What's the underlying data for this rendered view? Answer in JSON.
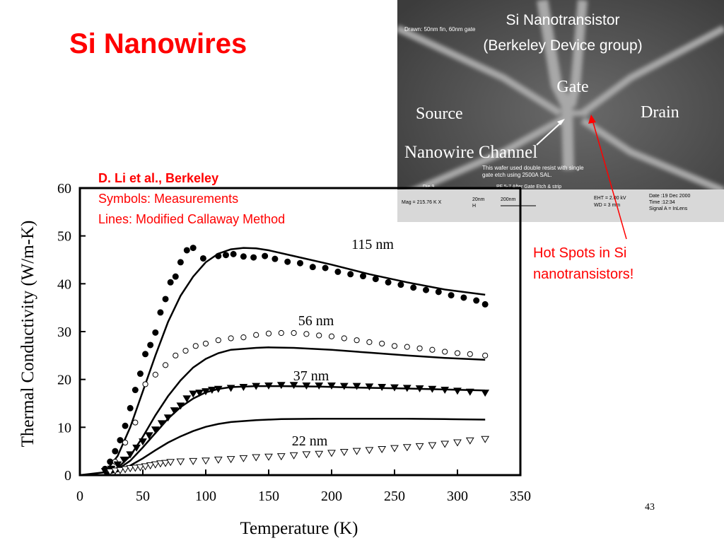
{
  "slide": {
    "title": "Si Nanowires",
    "number": "43",
    "citation": {
      "author": "D. Li et al., Berkeley",
      "line2": "Symbols: Measurements",
      "line3": "Lines: Modified Callaway Method"
    },
    "hotspot_note": [
      "Hot Spots in Si",
      "nanotransistors!"
    ]
  },
  "photo": {
    "title_line1": "Si Nanotransistor",
    "title_line2": "(Berkeley Device group)",
    "drawn_caption": "Drawn:  50nm fin, 60nm gate",
    "label_gate": "Gate",
    "label_source": "Source",
    "label_drain": "Drain",
    "label_channel": "Nanowire Channel",
    "overlay_note_1": "This wafer used double resist with single",
    "overlay_note_2": "gate etch using 2500A SAL.",
    "info_die": "Die 9.",
    "info_step": "PF 5-7 After Gate Etch & strip",
    "info_mag": "Mag = 215.76 K X",
    "info_scale1": "20nm",
    "info_scale1_sub": "H",
    "info_scale2": "200nm",
    "info_eht": "EHT =  2.00 kV",
    "info_wd": "WD =    3 mm",
    "info_date": "Date :19 Dec 2000",
    "info_time": "Time :12:34",
    "info_signal": "Signal A = InLens"
  },
  "colors": {
    "accent": "#ff0000",
    "text": "#000000",
    "sem_bg": "#4a4a4a"
  },
  "chart_data": {
    "type": "scatter",
    "xlabel": "Temperature (K)",
    "ylabel": "Thermal Conductivity (W/m-K)",
    "xlim": [
      0,
      350
    ],
    "ylim": [
      0,
      60
    ],
    "xticks": [
      0,
      50,
      100,
      150,
      200,
      250,
      300,
      350
    ],
    "yticks": [
      0,
      10,
      20,
      30,
      40,
      50,
      60
    ],
    "series": [
      {
        "name": "115 nm",
        "marker": "filled-circle",
        "measurements": [
          [
            20,
            1.3
          ],
          [
            24,
            2.8
          ],
          [
            28,
            5
          ],
          [
            32,
            7.3
          ],
          [
            36,
            10.3
          ],
          [
            40,
            14
          ],
          [
            44,
            17.8
          ],
          [
            48,
            21.2
          ],
          [
            52,
            25.3
          ],
          [
            56,
            27.2
          ],
          [
            60,
            29.8
          ],
          [
            64,
            34
          ],
          [
            68,
            36.8
          ],
          [
            72,
            40.3
          ],
          [
            76,
            41.5
          ],
          [
            80,
            44.5
          ],
          [
            85,
            47
          ],
          [
            90,
            47.5
          ],
          [
            98,
            45.3
          ],
          [
            110,
            45.8
          ],
          [
            116,
            46
          ],
          [
            122,
            46.2
          ],
          [
            130,
            45.7
          ],
          [
            138,
            45.5
          ],
          [
            147,
            45.8
          ],
          [
            155,
            45.2
          ],
          [
            165,
            44.6
          ],
          [
            175,
            44.3
          ],
          [
            185,
            43.5
          ],
          [
            195,
            43.3
          ],
          [
            205,
            42.5
          ],
          [
            215,
            42
          ],
          [
            225,
            41.6
          ],
          [
            235,
            41
          ],
          [
            245,
            40.3
          ],
          [
            255,
            39.8
          ],
          [
            265,
            39.2
          ],
          [
            275,
            38.7
          ],
          [
            285,
            38.3
          ],
          [
            295,
            37.6
          ],
          [
            305,
            37.1
          ],
          [
            315,
            36.5
          ],
          [
            322,
            35.7
          ]
        ],
        "model": [
          [
            0,
            0
          ],
          [
            20,
            0.6
          ],
          [
            30,
            4
          ],
          [
            40,
            10
          ],
          [
            50,
            17.5
          ],
          [
            60,
            25
          ],
          [
            70,
            32
          ],
          [
            80,
            37.5
          ],
          [
            90,
            41.5
          ],
          [
            100,
            44.5
          ],
          [
            110,
            46.3
          ],
          [
            120,
            47.2
          ],
          [
            130,
            47.5
          ],
          [
            140,
            47.4
          ],
          [
            150,
            47
          ],
          [
            170,
            45.8
          ],
          [
            200,
            44
          ],
          [
            230,
            42
          ],
          [
            260,
            40.3
          ],
          [
            290,
            38.8
          ],
          [
            322,
            37.7
          ]
        ]
      },
      {
        "name": "56 nm",
        "marker": "open-circle",
        "measurements": [
          [
            28,
            2.8
          ],
          [
            36,
            6.8
          ],
          [
            44,
            11
          ],
          [
            52,
            19
          ],
          [
            60,
            21
          ],
          [
            68,
            23
          ],
          [
            76,
            25
          ],
          [
            84,
            26
          ],
          [
            92,
            27
          ],
          [
            100,
            27.5
          ],
          [
            110,
            28.2
          ],
          [
            120,
            28.6
          ],
          [
            130,
            28.8
          ],
          [
            140,
            29.3
          ],
          [
            150,
            29.6
          ],
          [
            160,
            29.7
          ],
          [
            170,
            29.7
          ],
          [
            180,
            29.5
          ],
          [
            190,
            29.2
          ],
          [
            200,
            29
          ],
          [
            210,
            28.6
          ],
          [
            220,
            28.2
          ],
          [
            230,
            27.8
          ],
          [
            240,
            27.5
          ],
          [
            250,
            27
          ],
          [
            260,
            26.8
          ],
          [
            270,
            26.5
          ],
          [
            280,
            26.2
          ],
          [
            290,
            25.8
          ],
          [
            300,
            25.5
          ],
          [
            310,
            25.3
          ],
          [
            322,
            25
          ]
        ],
        "model": [
          [
            20,
            0.3
          ],
          [
            30,
            1.5
          ],
          [
            40,
            4
          ],
          [
            50,
            8
          ],
          [
            60,
            12.5
          ],
          [
            70,
            16.5
          ],
          [
            80,
            19.8
          ],
          [
            90,
            22.5
          ],
          [
            100,
            24.3
          ],
          [
            110,
            25.5
          ],
          [
            120,
            26.2
          ],
          [
            140,
            26.6
          ],
          [
            150,
            26.7
          ],
          [
            170,
            26.6
          ],
          [
            200,
            26.2
          ],
          [
            230,
            25.6
          ],
          [
            260,
            25
          ],
          [
            290,
            24.5
          ],
          [
            322,
            24.1
          ]
        ]
      },
      {
        "name": "37 nm",
        "marker": "filled-down-triangle",
        "measurements": [
          [
            20,
            0.8
          ],
          [
            25,
            1.3
          ],
          [
            30,
            2.2
          ],
          [
            35,
            3.2
          ],
          [
            40,
            4.3
          ],
          [
            45,
            5.7
          ],
          [
            50,
            7
          ],
          [
            55,
            8.3
          ],
          [
            60,
            9.5
          ],
          [
            65,
            10.8
          ],
          [
            70,
            12
          ],
          [
            75,
            13.5
          ],
          [
            80,
            14.5
          ],
          [
            85,
            16
          ],
          [
            90,
            17
          ],
          [
            95,
            17.2
          ],
          [
            100,
            17.5
          ],
          [
            105,
            17.8
          ],
          [
            110,
            18
          ],
          [
            120,
            18.2
          ],
          [
            130,
            18.4
          ],
          [
            140,
            18.6
          ],
          [
            150,
            18.7
          ],
          [
            160,
            18.8
          ],
          [
            170,
            18.8
          ],
          [
            180,
            18.7
          ],
          [
            190,
            18.7
          ],
          [
            200,
            18.7
          ],
          [
            210,
            18.6
          ],
          [
            220,
            18.6
          ],
          [
            230,
            18.5
          ],
          [
            240,
            18.4
          ],
          [
            250,
            18.3
          ],
          [
            260,
            18.2
          ],
          [
            270,
            18.1
          ],
          [
            280,
            18
          ],
          [
            290,
            17.8
          ],
          [
            300,
            17.6
          ],
          [
            310,
            17.4
          ],
          [
            322,
            17.2
          ]
        ],
        "model": [
          [
            20,
            0.3
          ],
          [
            30,
            1.2
          ],
          [
            40,
            3
          ],
          [
            50,
            5.8
          ],
          [
            60,
            8.8
          ],
          [
            70,
            11.8
          ],
          [
            80,
            14.2
          ],
          [
            90,
            16
          ],
          [
            100,
            17.3
          ],
          [
            110,
            18
          ],
          [
            120,
            18.4
          ],
          [
            140,
            18.6
          ],
          [
            160,
            18.6
          ],
          [
            190,
            18.5
          ],
          [
            220,
            18.3
          ],
          [
            260,
            18.1
          ],
          [
            290,
            17.9
          ],
          [
            322,
            17.7
          ]
        ]
      },
      {
        "name": "22 nm",
        "marker": "open-down-triangle",
        "measurements": [
          [
            24,
            0.7
          ],
          [
            28,
            0.9
          ],
          [
            32,
            1
          ],
          [
            36,
            1.2
          ],
          [
            40,
            1.4
          ],
          [
            44,
            1.5
          ],
          [
            48,
            1.6
          ],
          [
            52,
            1.8
          ],
          [
            56,
            2
          ],
          [
            60,
            2.2
          ],
          [
            64,
            2.4
          ],
          [
            68,
            2.5
          ],
          [
            72,
            2.7
          ],
          [
            80,
            2.8
          ],
          [
            90,
            2.9
          ],
          [
            100,
            3
          ],
          [
            110,
            3.2
          ],
          [
            120,
            3.3
          ],
          [
            130,
            3.5
          ],
          [
            140,
            3.7
          ],
          [
            150,
            3.8
          ],
          [
            160,
            3.9
          ],
          [
            170,
            4.1
          ],
          [
            180,
            4.3
          ],
          [
            190,
            4.4
          ],
          [
            200,
            4.6
          ],
          [
            210,
            4.8
          ],
          [
            220,
            5
          ],
          [
            230,
            5.2
          ],
          [
            240,
            5.4
          ],
          [
            250,
            5.6
          ],
          [
            260,
            5.8
          ],
          [
            270,
            6
          ],
          [
            280,
            6.2
          ],
          [
            290,
            6.5
          ],
          [
            300,
            6.8
          ],
          [
            310,
            7.2
          ],
          [
            322,
            7.5
          ]
        ],
        "model": [
          [
            20,
            0.2
          ],
          [
            30,
            0.8
          ],
          [
            40,
            2
          ],
          [
            50,
            3.5
          ],
          [
            60,
            5.2
          ],
          [
            70,
            6.8
          ],
          [
            80,
            8.1
          ],
          [
            90,
            9.2
          ],
          [
            100,
            10.1
          ],
          [
            110,
            10.7
          ],
          [
            120,
            11.1
          ],
          [
            140,
            11.5
          ],
          [
            160,
            11.7
          ],
          [
            190,
            11.8
          ],
          [
            220,
            11.8
          ],
          [
            260,
            11.8
          ],
          [
            290,
            11.7
          ],
          [
            322,
            11.6
          ]
        ]
      }
    ]
  }
}
